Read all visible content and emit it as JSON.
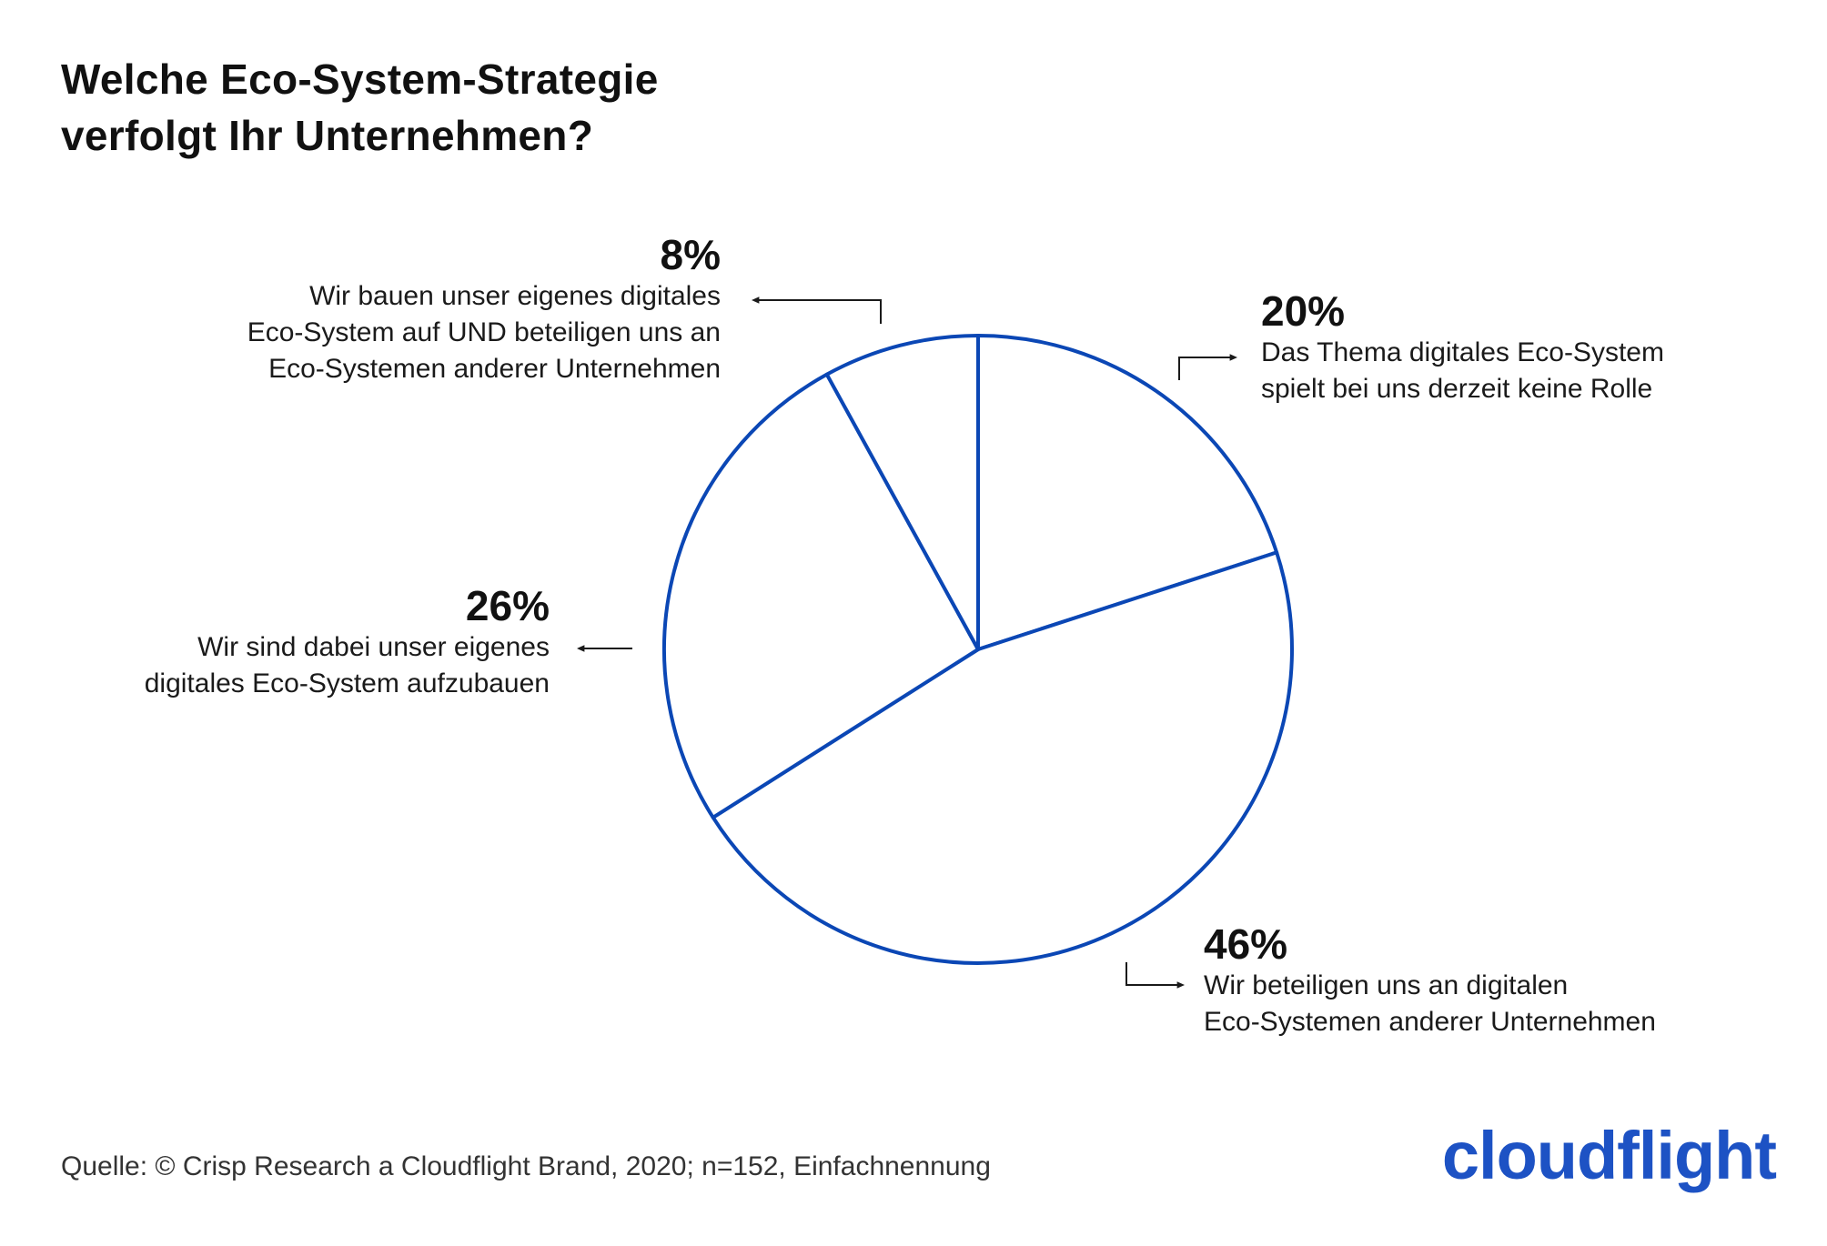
{
  "title": {
    "line1": "Welche Eco-System-Strategie",
    "line2": "verfolgt Ihr Unternehmen?"
  },
  "chart_data": {
    "type": "pie",
    "start_angle_deg": 0,
    "direction": "clockwise",
    "slices": [
      {
        "value": 20,
        "label": "20%",
        "text": [
          "Das Thema digitales Eco-System",
          "spielt bei uns derzeit keine Rolle"
        ]
      },
      {
        "value": 46,
        "label": "46%",
        "text": [
          "Wir beteiligen uns an digitalen",
          "Eco-Systemen anderer Unternehmen"
        ]
      },
      {
        "value": 26,
        "label": "26%",
        "text": [
          "Wir sind dabei unser eigenes",
          "digitales Eco-System aufzubauen"
        ]
      },
      {
        "value": 8,
        "label": "8%",
        "text": [
          "Wir bauen unser eigenes digitales",
          "Eco-System auf UND beteiligen uns an",
          "Eco-Systemen anderer Unternehmen"
        ]
      }
    ],
    "colors": {
      "stroke": "#0b47b5",
      "fill": "#ffffff",
      "leader": "#1a1a1a"
    }
  },
  "source": "Quelle: © Crisp Research a Cloudflight Brand, 2020; n=152, Einfachnennung",
  "logo": {
    "text": "cloudflight",
    "color": "#1d52c4"
  }
}
